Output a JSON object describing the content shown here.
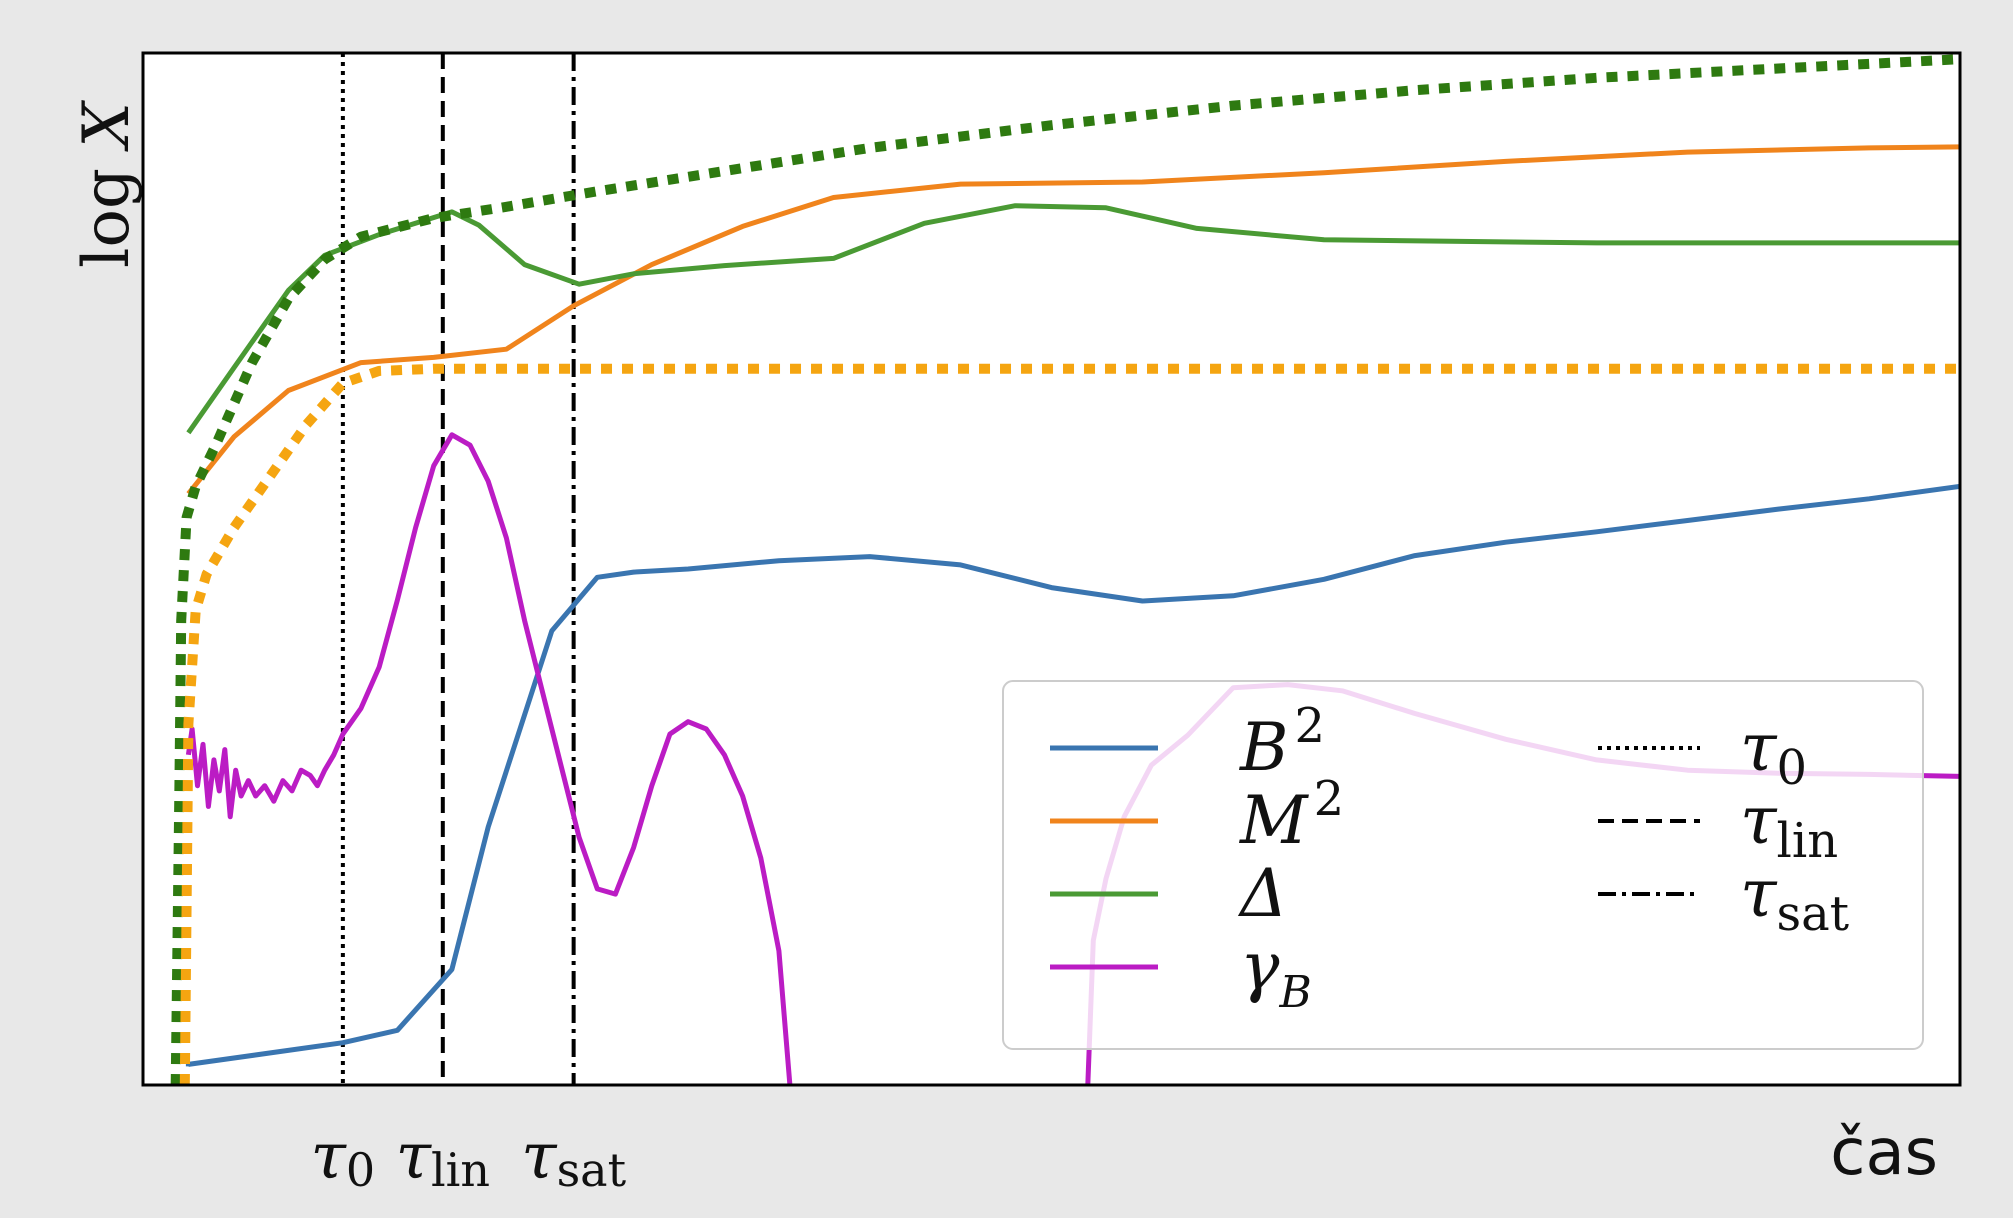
{
  "chart_data": {
    "type": "line",
    "title": "",
    "xlabel": "čas",
    "ylabel": "log X",
    "xlim": [
      0,
      100
    ],
    "ylim": [
      0,
      100
    ],
    "x_ticks": false,
    "y_ticks": false,
    "grid": false,
    "legend_position": "bottom-right",
    "vlines": [
      {
        "name": "τ0",
        "symbol": "τ",
        "sub": "0",
        "x": 11.0,
        "style": "dotted"
      },
      {
        "name": "τlin",
        "symbol": "τ",
        "sub": "lin",
        "x": 16.5,
        "style": "dashed"
      },
      {
        "name": "τsat",
        "symbol": "τ",
        "sub": "sat",
        "x": 23.7,
        "style": "dashdot"
      }
    ],
    "series": [
      {
        "name": "B²",
        "symbol": "B",
        "sup": "2",
        "color": "#3a75b0",
        "style": "solid",
        "width": 5,
        "points": [
          [
            2.5,
            1.8
          ],
          [
            2.5,
            2.0
          ],
          [
            11,
            4.1
          ],
          [
            14,
            5.3
          ],
          [
            17,
            11.2
          ],
          [
            19,
            25
          ],
          [
            22.5,
            44
          ],
          [
            25,
            49.2
          ],
          [
            27,
            49.7
          ],
          [
            30,
            50
          ],
          [
            35,
            50.8
          ],
          [
            40,
            51.2
          ],
          [
            45,
            50.4
          ],
          [
            50,
            48.2
          ],
          [
            55,
            46.9
          ],
          [
            60,
            47.4
          ],
          [
            65,
            49
          ],
          [
            70,
            51.3
          ],
          [
            75,
            52.6
          ],
          [
            80,
            53.6
          ],
          [
            85,
            54.7
          ],
          [
            90,
            55.8
          ],
          [
            95,
            56.8
          ],
          [
            100,
            58
          ]
        ]
      },
      {
        "name": "M²",
        "symbol": "M",
        "sup": "2",
        "color": "#f0841c",
        "style": "solid",
        "width": 5,
        "points": [
          [
            2.5,
            57.3
          ],
          [
            5,
            62.8
          ],
          [
            8,
            67.3
          ],
          [
            12,
            70
          ],
          [
            16,
            70.5
          ],
          [
            20,
            71.3
          ],
          [
            23.7,
            75.5
          ],
          [
            28,
            79.5
          ],
          [
            33,
            83.2
          ],
          [
            38,
            86
          ],
          [
            45,
            87.3
          ],
          [
            55,
            87.5
          ],
          [
            65,
            88.4
          ],
          [
            75,
            89.5
          ],
          [
            85,
            90.4
          ],
          [
            95,
            90.8
          ],
          [
            100,
            90.9
          ]
        ]
      },
      {
        "name": "Δ",
        "symbol": "Δ",
        "sup": "",
        "color": "#4a9a34",
        "style": "solid",
        "width": 5,
        "points": [
          [
            2.5,
            63.2
          ],
          [
            5,
            69.5
          ],
          [
            8,
            77
          ],
          [
            10,
            80.4
          ],
          [
            13,
            82.4
          ],
          [
            17,
            84.6
          ],
          [
            18.5,
            83.3
          ],
          [
            21,
            79.5
          ],
          [
            24,
            77.6
          ],
          [
            27,
            78.6
          ],
          [
            32,
            79.4
          ],
          [
            38,
            80.1
          ],
          [
            43,
            83.5
          ],
          [
            48,
            85.2
          ],
          [
            53,
            85
          ],
          [
            58,
            83
          ],
          [
            65,
            81.9
          ],
          [
            80,
            81.6
          ],
          [
            100,
            81.6
          ]
        ]
      },
      {
        "name": "γB",
        "symbol": "γ",
        "sub": "B",
        "color": "#bb1cc4",
        "style": "solid",
        "width": 5,
        "points": [
          [
            2.5,
            32
          ],
          [
            2.7,
            34.5
          ],
          [
            3.0,
            29
          ],
          [
            3.3,
            33
          ],
          [
            3.6,
            27
          ],
          [
            3.9,
            31.5
          ],
          [
            4.2,
            28.5
          ],
          [
            4.5,
            32.5
          ],
          [
            4.8,
            26
          ],
          [
            5.1,
            30.5
          ],
          [
            5.4,
            28
          ],
          [
            5.8,
            29.5
          ],
          [
            6.2,
            28
          ],
          [
            6.7,
            29
          ],
          [
            7.2,
            27.5
          ],
          [
            7.7,
            29.5
          ],
          [
            8.2,
            28.5
          ],
          [
            8.7,
            30.5
          ],
          [
            9.2,
            30
          ],
          [
            9.6,
            29
          ],
          [
            10,
            30.5
          ],
          [
            10.5,
            32
          ],
          [
            11,
            34
          ],
          [
            12,
            36.5
          ],
          [
            13,
            40.5
          ],
          [
            14,
            47
          ],
          [
            15,
            54
          ],
          [
            16,
            60
          ],
          [
            17,
            63
          ],
          [
            18,
            62
          ],
          [
            19,
            58.5
          ],
          [
            20,
            53
          ],
          [
            21,
            45
          ],
          [
            22,
            38
          ],
          [
            23,
            31
          ],
          [
            24,
            24
          ],
          [
            25,
            19
          ],
          [
            26,
            18.5
          ],
          [
            27,
            23
          ],
          [
            28,
            29
          ],
          [
            29,
            34
          ],
          [
            30,
            35.2
          ],
          [
            31,
            34.5
          ],
          [
            32,
            32
          ],
          [
            33,
            28
          ],
          [
            34,
            22
          ],
          [
            35,
            13
          ],
          [
            35.6,
            0
          ]
        ]
      },
      {
        "name": "γB-cont",
        "legend": false,
        "color": "#bb1cc4",
        "style": "solid",
        "width": 5,
        "points": [
          [
            52,
            0
          ],
          [
            52.3,
            14
          ],
          [
            53,
            20
          ],
          [
            54,
            26
          ],
          [
            55.5,
            31
          ],
          [
            57.5,
            33.9
          ],
          [
            60,
            38.5
          ],
          [
            63,
            38.8
          ],
          [
            66,
            38.2
          ],
          [
            70,
            36
          ],
          [
            75,
            33.5
          ],
          [
            80,
            31.5
          ],
          [
            85,
            30.5
          ],
          [
            90,
            30.2
          ],
          [
            95,
            30.1
          ],
          [
            100,
            29.9
          ]
        ]
      },
      {
        "name": "Δ-fit",
        "legend": false,
        "color": "#2e7a10",
        "style": "dotted",
        "width": 10,
        "points": [
          [
            1.8,
            0
          ],
          [
            2.0,
            28
          ],
          [
            2.1,
            45
          ],
          [
            2.4,
            55
          ],
          [
            2.9,
            58
          ],
          [
            4,
            62
          ],
          [
            6,
            70
          ],
          [
            8,
            76.2
          ],
          [
            10,
            80
          ],
          [
            12,
            82.2
          ],
          [
            16,
            84
          ],
          [
            20,
            85.1
          ],
          [
            25,
            86.6
          ],
          [
            30,
            88
          ],
          [
            40,
            90.8
          ],
          [
            50,
            93
          ],
          [
            60,
            94.9
          ],
          [
            70,
            96.4
          ],
          [
            80,
            97.6
          ],
          [
            90,
            98.5
          ],
          [
            100,
            99.4
          ]
        ]
      },
      {
        "name": "M²-fit",
        "legend": false,
        "color": "#f5a511",
        "style": "dotted",
        "width": 10,
        "points": [
          [
            2.3,
            0
          ],
          [
            2.5,
            35
          ],
          [
            2.9,
            46
          ],
          [
            3.5,
            49.5
          ],
          [
            5,
            54
          ],
          [
            7,
            59
          ],
          [
            9,
            64
          ],
          [
            11,
            68
          ],
          [
            13,
            69.2
          ],
          [
            16,
            69.4
          ],
          [
            25,
            69.4
          ],
          [
            40,
            69.4
          ],
          [
            60,
            69.4
          ],
          [
            80,
            69.4
          ],
          [
            100,
            69.4
          ]
        ]
      }
    ],
    "legend": {
      "lines": [
        "B²",
        "M²",
        "Δ",
        "γB"
      ],
      "markers": [
        "τ0",
        "τlin",
        "τsat"
      ]
    }
  }
}
